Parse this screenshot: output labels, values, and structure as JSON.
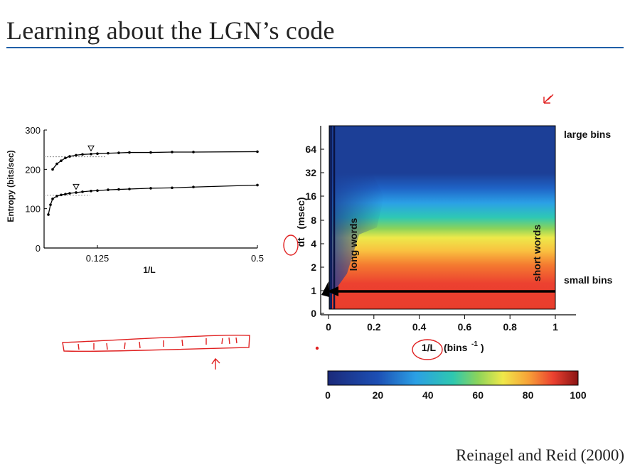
{
  "slide": {
    "title": "Learning about the LGN’s code",
    "citation": "Reinagel and Reid (2000)"
  },
  "colors": {
    "accent_rule": "#1f5fa8",
    "annotation": "#e02020"
  },
  "chart_data": [
    {
      "type": "line",
      "xlabel": "1/L",
      "ylabel": "Entropy (bits/sec)",
      "xlim": [
        0,
        0.5
      ],
      "ylim": [
        0,
        300
      ],
      "x_tick_labels": [
        "0.125",
        "0.5"
      ],
      "y_tick_labels": [
        "0",
        "100",
        "200",
        "300"
      ],
      "series": [
        {
          "x": [
            0.02,
            0.03,
            0.04,
            0.05,
            0.06,
            0.075,
            0.09,
            0.11,
            0.125,
            0.15,
            0.175,
            0.2,
            0.25,
            0.3,
            0.35,
            0.5
          ],
          "values": [
            200,
            214,
            222,
            229,
            233,
            236,
            238,
            239,
            240,
            241,
            242,
            243,
            243,
            244,
            244,
            245
          ],
          "estimate_marker": {
            "x": 0.11,
            "y": 240
          },
          "reference_line": 232
        },
        {
          "x": [
            0.01,
            0.015,
            0.02,
            0.03,
            0.04,
            0.05,
            0.06,
            0.075,
            0.09,
            0.11,
            0.125,
            0.15,
            0.175,
            0.2,
            0.25,
            0.3,
            0.35,
            0.5
          ],
          "values": [
            85,
            110,
            125,
            132,
            135,
            137,
            139,
            141,
            143,
            145,
            146,
            148,
            149,
            150,
            152,
            153,
            155,
            160
          ],
          "estimate_marker": {
            "x": 0.075,
            "y": 142
          },
          "reference_line": 134
        }
      ]
    },
    {
      "type": "heatmap",
      "xlabel": "1/L",
      "xlabel_suffix": "(bins",
      "xlabel_exp": "-1",
      "xlabel_close": ")",
      "ylabel": "dt",
      "ylabel_unit": "(msec)",
      "x_tick_labels": [
        "0",
        "0.2",
        "0.4",
        "0.6",
        "0.8",
        "1"
      ],
      "y_tick_labels": [
        "0",
        "1",
        "2",
        "4",
        "8",
        "16",
        "32",
        "64"
      ],
      "annotations": [
        "large bins",
        "small bins",
        "long words",
        "short words"
      ],
      "colorbar": {
        "min": 0,
        "max": 100,
        "tick_labels": [
          "0",
          "20",
          "40",
          "60",
          "80",
          "100"
        ]
      }
    }
  ]
}
